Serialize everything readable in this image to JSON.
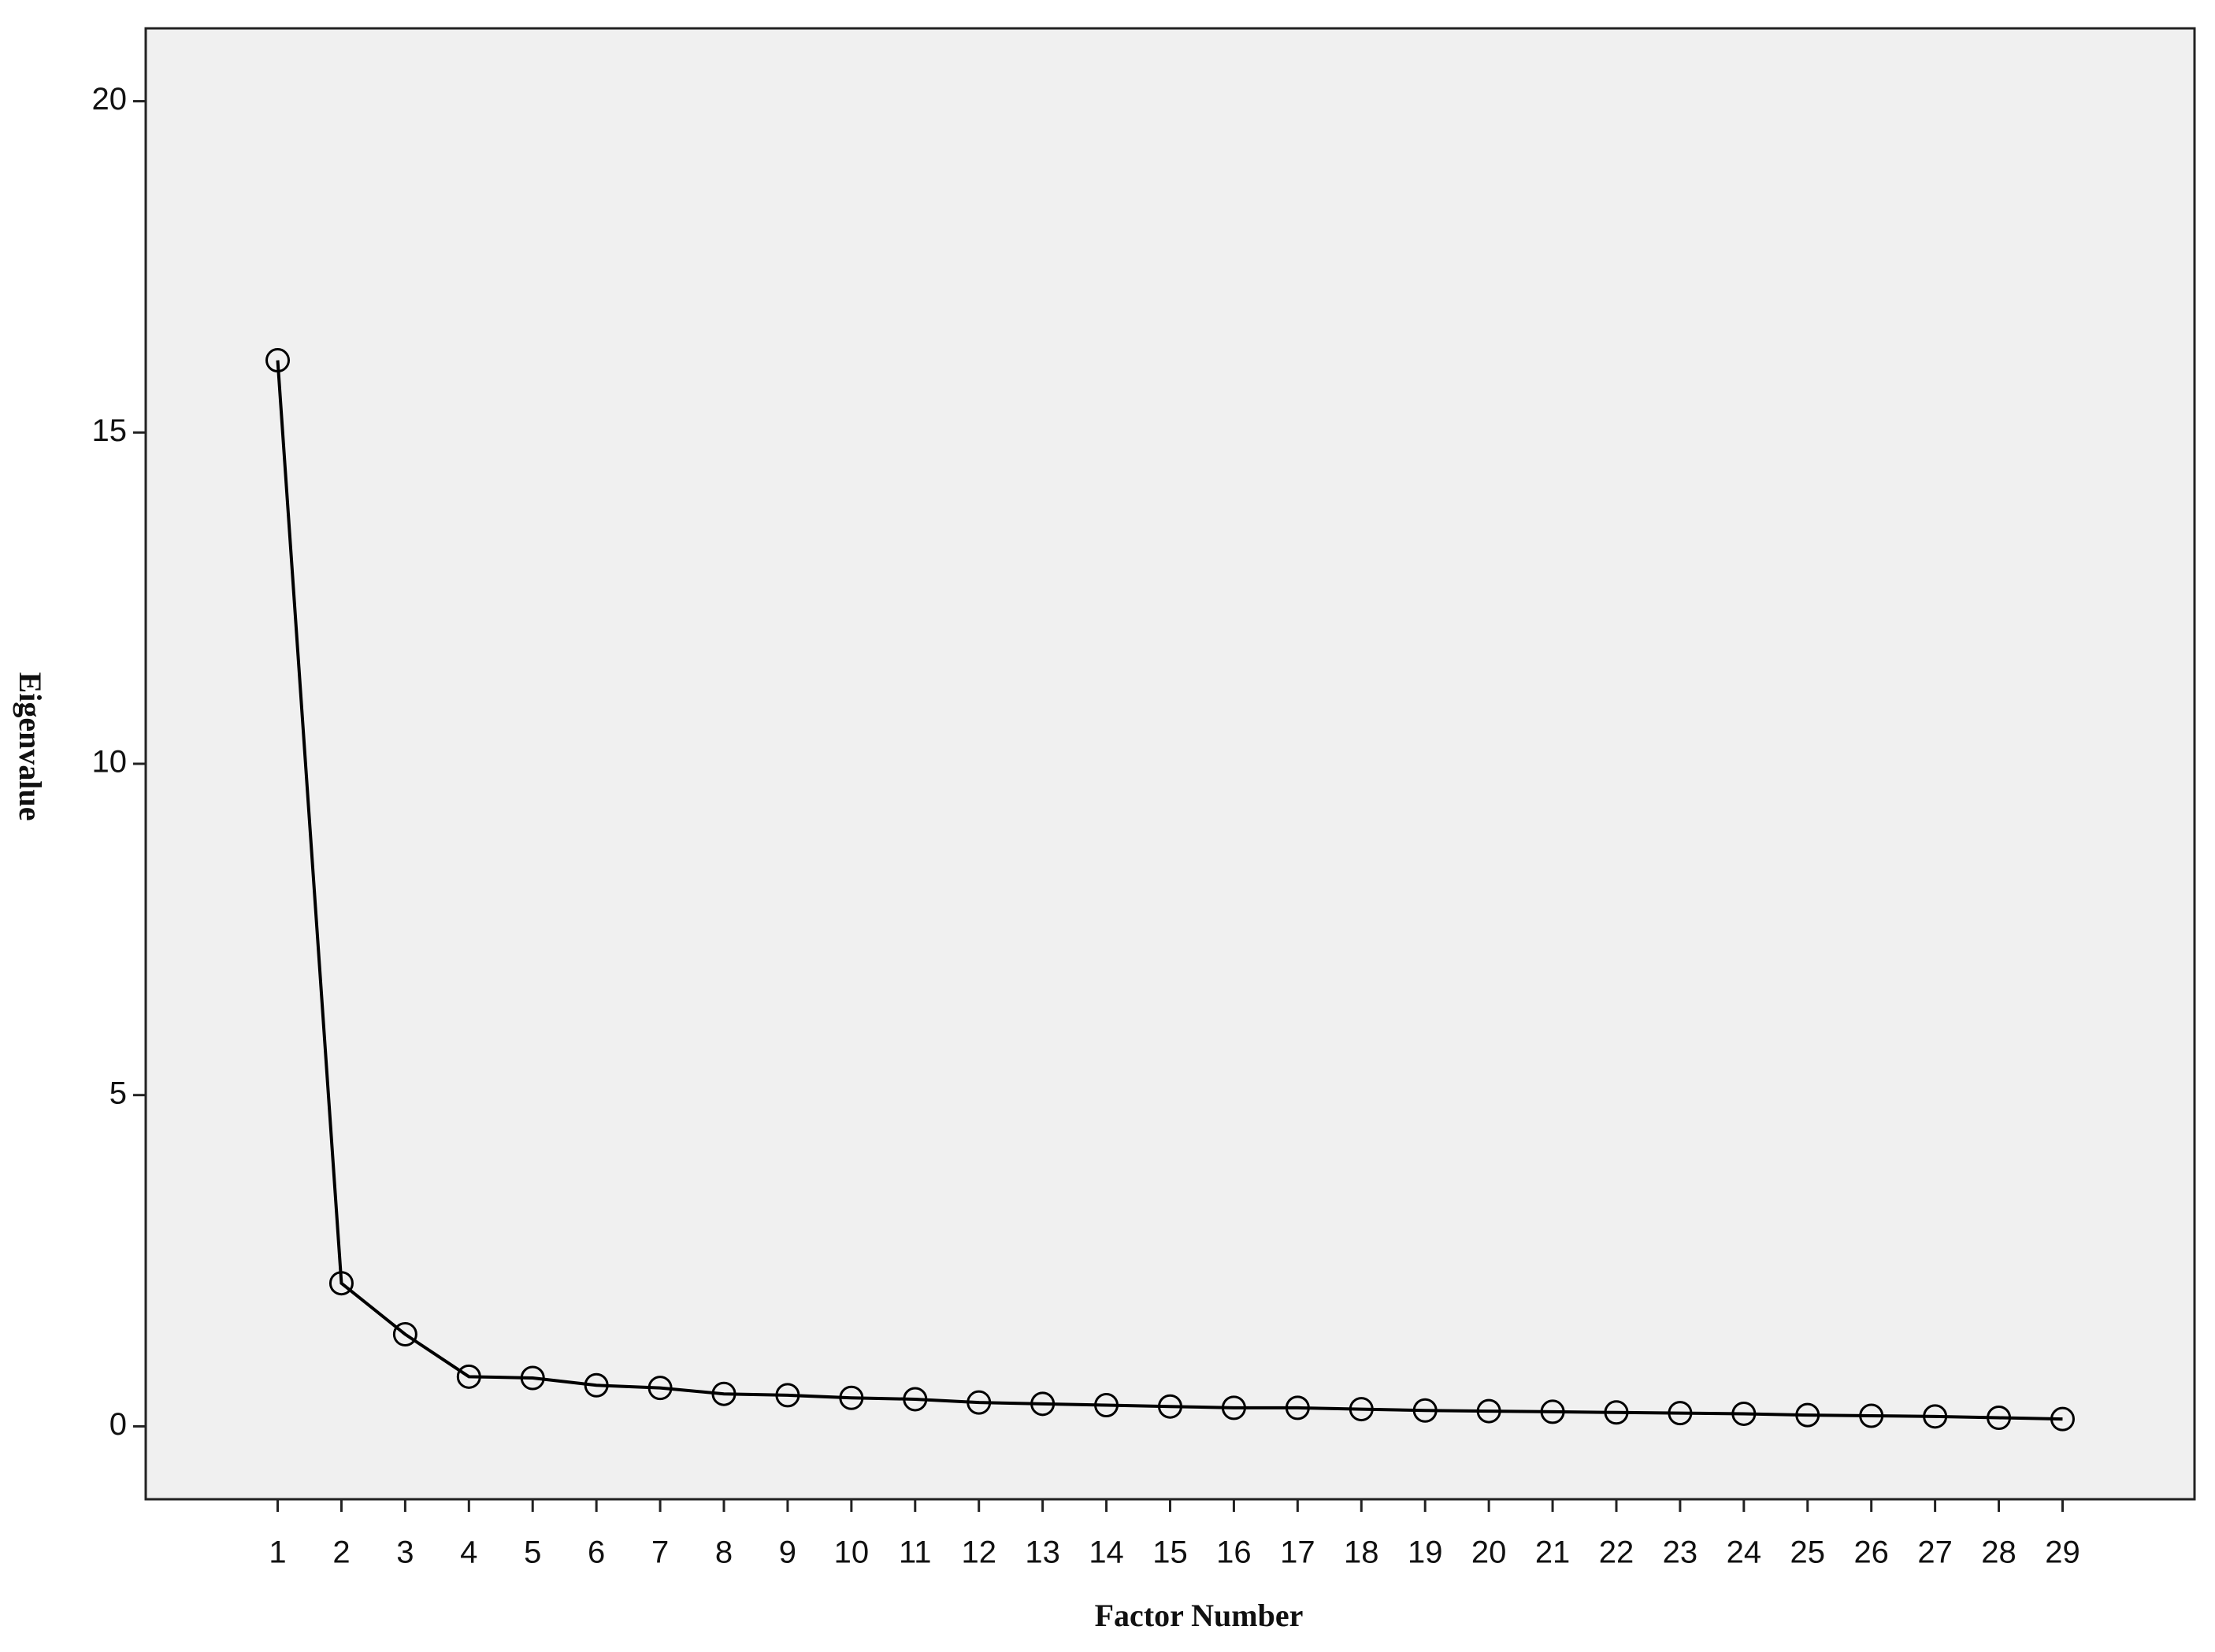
{
  "chart_data": {
    "type": "line",
    "x_label": "Factor Number",
    "y_label": "Eigenvalue",
    "x": [
      1,
      2,
      3,
      4,
      5,
      6,
      7,
      8,
      9,
      10,
      11,
      12,
      13,
      14,
      15,
      16,
      17,
      18,
      19,
      20,
      21,
      22,
      23,
      24,
      25,
      26,
      27,
      28,
      29
    ],
    "series": [
      {
        "color": "#000000",
        "values": [
          16.09,
          2.16,
          1.39,
          0.75,
          0.73,
          0.62,
          0.58,
          0.49,
          0.47,
          0.43,
          0.41,
          0.36,
          0.34,
          0.32,
          0.3,
          0.28,
          0.28,
          0.26,
          0.24,
          0.23,
          0.22,
          0.21,
          0.2,
          0.19,
          0.17,
          0.16,
          0.15,
          0.13,
          0.11
        ]
      }
    ],
    "xlim": [
      -1.07,
      31.07
    ],
    "xticks": [
      1,
      2,
      3,
      4,
      5,
      6,
      7,
      8,
      9,
      10,
      11,
      12,
      13,
      14,
      15,
      16,
      17,
      18,
      19,
      20,
      21,
      22,
      23,
      24,
      25,
      26,
      27,
      28,
      29
    ],
    "ylim": [
      -1.1,
      21.1
    ],
    "yticks": [
      0,
      5,
      10,
      15,
      20
    ],
    "plot_background": "#f0f0f0",
    "markers": "open-circle"
  }
}
